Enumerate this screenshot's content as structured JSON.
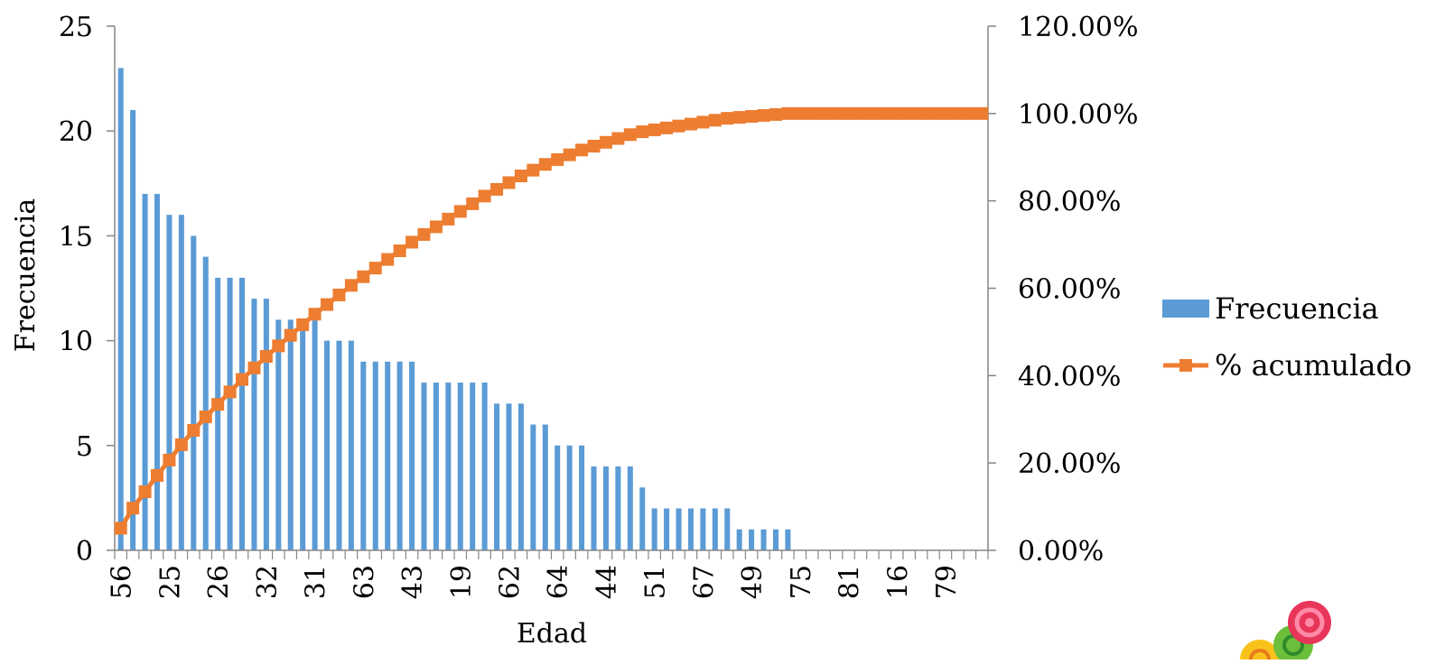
{
  "chart_data": {
    "type": "bar",
    "xlabel": "Edad",
    "ylabel": "Frecuencia",
    "y_ticks": [
      "0",
      "5",
      "10",
      "15",
      "20",
      "25"
    ],
    "ylim": [
      0,
      25
    ],
    "y2_ticks": [
      "0.00%",
      "20.00%",
      "40.00%",
      "60.00%",
      "80.00%",
      "100.00%",
      "120.00%"
    ],
    "y2lim": [
      0,
      1.2
    ],
    "x_tick_labels": [
      "56",
      "25",
      "26",
      "32",
      "31",
      "63",
      "43",
      "19",
      "62",
      "64",
      "44",
      "51",
      "67",
      "49",
      "75",
      "81",
      "16",
      "79"
    ],
    "legend": {
      "position": "right",
      "bar_label": "Frecuencia",
      "line_label": "% acumulado"
    },
    "colors": {
      "bars": "#5b9bd5",
      "line": "#ed7d31",
      "axis": "#868686"
    },
    "frequency": [
      23,
      21,
      17,
      17,
      16,
      16,
      15,
      14,
      13,
      13,
      13,
      12,
      12,
      11,
      11,
      11,
      11,
      10,
      10,
      10,
      9,
      9,
      9,
      9,
      9,
      8,
      8,
      8,
      8,
      8,
      8,
      7,
      7,
      7,
      6,
      6,
      5,
      5,
      5,
      4,
      4,
      4,
      4,
      3,
      2,
      2,
      2,
      2,
      2,
      2,
      2,
      1,
      1,
      1,
      1,
      1,
      0,
      0,
      0,
      0,
      0,
      0,
      0,
      0,
      0,
      0,
      0,
      0,
      0,
      0,
      0,
      0
    ]
  },
  "decoration": {
    "logo": "candy-swirl-logo"
  }
}
